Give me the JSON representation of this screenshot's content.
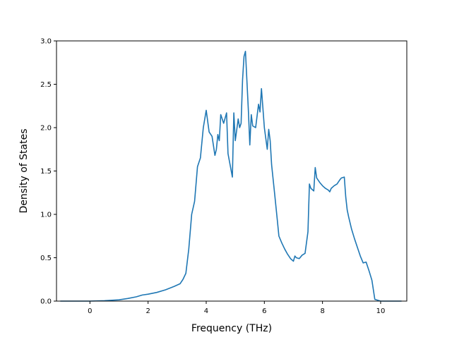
{
  "chart_data": {
    "type": "line",
    "xlabel": "Frequency (THz)",
    "ylabel": "Density of States",
    "xlim": [
      -1.15,
      10.9
    ],
    "ylim": [
      0.0,
      3.0
    ],
    "x_ticks": [
      0,
      2,
      4,
      6,
      8,
      10
    ],
    "y_ticks": [
      0.0,
      0.5,
      1.0,
      1.5,
      2.0,
      2.5,
      3.0
    ],
    "x_tick_labels": [
      "0",
      "2",
      "4",
      "6",
      "8",
      "10"
    ],
    "y_tick_labels": [
      "0.0",
      "0.5",
      "1.0",
      "1.5",
      "2.0",
      "2.5",
      "3.0"
    ],
    "grid": false,
    "legend": "none",
    "series": [
      {
        "color": "#1f77b4",
        "x": [
          -1.0,
          -0.5,
          0.0,
          0.5,
          1.0,
          1.3,
          1.6,
          1.8,
          2.0,
          2.3,
          2.6,
          2.9,
          3.1,
          3.2,
          3.3,
          3.4,
          3.5,
          3.6,
          3.7,
          3.8,
          3.9,
          4.0,
          4.1,
          4.2,
          4.3,
          4.35,
          4.4,
          4.45,
          4.5,
          4.6,
          4.7,
          4.75,
          4.85,
          4.9,
          4.95,
          5.0,
          5.1,
          5.15,
          5.2,
          5.25,
          5.3,
          5.35,
          5.45,
          5.5,
          5.55,
          5.6,
          5.7,
          5.8,
          5.85,
          5.9,
          6.0,
          6.1,
          6.15,
          6.2,
          6.25,
          6.35,
          6.45,
          6.5,
          6.6,
          6.7,
          6.8,
          6.9,
          7.0,
          7.05,
          7.1,
          7.2,
          7.3,
          7.4,
          7.5,
          7.55,
          7.6,
          7.7,
          7.75,
          7.8,
          7.9,
          8.0,
          8.1,
          8.2,
          8.25,
          8.3,
          8.4,
          8.5,
          8.6,
          8.65,
          8.75,
          8.8,
          8.85,
          8.9,
          9.0,
          9.1,
          9.2,
          9.3,
          9.4,
          9.5,
          9.6,
          9.7,
          9.8,
          10.0,
          10.3,
          10.7
        ],
        "y": [
          0.0,
          0.0,
          0.0,
          0.005,
          0.015,
          0.03,
          0.05,
          0.07,
          0.08,
          0.1,
          0.13,
          0.17,
          0.2,
          0.25,
          0.32,
          0.6,
          1.0,
          1.15,
          1.55,
          1.65,
          2.0,
          2.2,
          1.95,
          1.9,
          1.68,
          1.75,
          1.92,
          1.85,
          2.15,
          2.05,
          2.17,
          1.7,
          1.52,
          1.43,
          2.17,
          1.85,
          2.1,
          2.0,
          2.05,
          2.55,
          2.82,
          2.88,
          2.2,
          1.8,
          2.15,
          2.02,
          2.0,
          2.27,
          2.18,
          2.45,
          2.0,
          1.75,
          1.98,
          1.85,
          1.57,
          1.25,
          0.92,
          0.75,
          0.67,
          0.6,
          0.54,
          0.49,
          0.46,
          0.52,
          0.5,
          0.49,
          0.53,
          0.55,
          0.8,
          1.35,
          1.3,
          1.27,
          1.54,
          1.42,
          1.37,
          1.33,
          1.3,
          1.28,
          1.26,
          1.3,
          1.33,
          1.35,
          1.4,
          1.42,
          1.43,
          1.2,
          1.05,
          0.97,
          0.83,
          0.72,
          0.62,
          0.52,
          0.44,
          0.45,
          0.35,
          0.24,
          0.02,
          0.0,
          0.0,
          0.0
        ]
      }
    ]
  }
}
